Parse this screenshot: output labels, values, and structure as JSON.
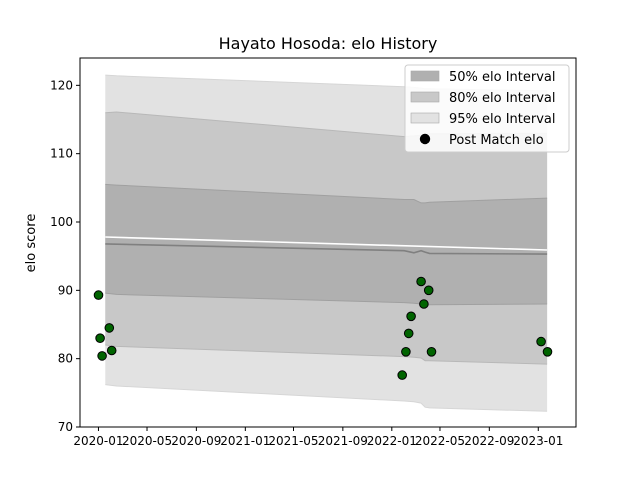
{
  "chart_data": {
    "type": "line",
    "title": "Hayato Hosoda: elo History",
    "xlabel": "",
    "ylabel": "elo score",
    "xlim": [
      "2019-11-16",
      "2023-04-05"
    ],
    "ylim": [
      70,
      124
    ],
    "x_ticks": [
      "2020-01",
      "2020-05",
      "2020-09",
      "2021-01",
      "2021-05",
      "2021-09",
      "2022-01",
      "2022-05",
      "2022-09",
      "2023-01"
    ],
    "y_ticks": [
      70,
      80,
      90,
      100,
      110,
      120
    ],
    "grid": false,
    "legend_position": "top-right",
    "legend": [
      {
        "label": "50% elo Interval",
        "kind": "band",
        "color": "#b0b0b0"
      },
      {
        "label": "80% elo Interval",
        "kind": "band",
        "color": "#c8c8c8"
      },
      {
        "label": "95% elo Interval",
        "kind": "band",
        "color": "#e2e2e2"
      },
      {
        "label": "Post Match elo",
        "kind": "marker",
        "color": "#000000"
      }
    ],
    "bands": {
      "x": [
        "2020-01-18",
        "2020-02-15",
        "2022-02-01",
        "2022-02-25",
        "2022-03-15",
        "2022-03-25",
        "2022-04-05",
        "2023-01-23"
      ],
      "p95": {
        "lower": [
          76.2,
          76.0,
          73.8,
          73.7,
          73.5,
          72.9,
          72.8,
          72.3
        ],
        "upper": [
          121.5,
          121.4,
          119.8,
          119.7,
          119.6,
          119.5,
          119.5,
          119.2
        ]
      },
      "p80": {
        "lower": [
          82.0,
          81.8,
          80.3,
          80.2,
          80.1,
          79.7,
          79.7,
          79.2
        ],
        "upper": [
          116.0,
          116.1,
          112.5,
          112.6,
          112.7,
          112.8,
          112.9,
          113.0
        ]
      },
      "p50": {
        "lower": [
          89.6,
          89.4,
          88.2,
          88.1,
          88.0,
          87.9,
          87.9,
          88.0
        ],
        "upper": [
          105.5,
          105.4,
          103.3,
          103.3,
          102.8,
          102.8,
          102.9,
          103.5
        ]
      }
    },
    "series": [
      {
        "kind": "line",
        "color": "#808080",
        "x": [
          "2020-01-18",
          "2022-02-01",
          "2022-02-25",
          "2022-03-15",
          "2022-03-25",
          "2022-04-05",
          "2023-01-23"
        ],
        "values": [
          96.8,
          95.8,
          95.5,
          95.8,
          95.6,
          95.4,
          95.3
        ]
      },
      {
        "kind": "line",
        "color": "#ffffff",
        "x": [
          "2020-01-18",
          "2023-01-23"
        ],
        "values": [
          97.8,
          95.9
        ]
      },
      {
        "kind": "scatter",
        "color": "#006400",
        "x": [
          "2020-01-01",
          "2020-01-05",
          "2020-01-10",
          "2020-01-28",
          "2020-02-03",
          "2022-01-27",
          "2022-02-05",
          "2022-02-12",
          "2022-02-18",
          "2022-03-15",
          "2022-03-22",
          "2022-04-03",
          "2022-04-10",
          "2023-01-08",
          "2023-01-24"
        ],
        "values": [
          89.3,
          83.0,
          80.4,
          84.5,
          81.2,
          77.6,
          81.0,
          83.7,
          86.2,
          91.3,
          88.0,
          90.0,
          81.0,
          82.5,
          81.0
        ]
      }
    ]
  }
}
